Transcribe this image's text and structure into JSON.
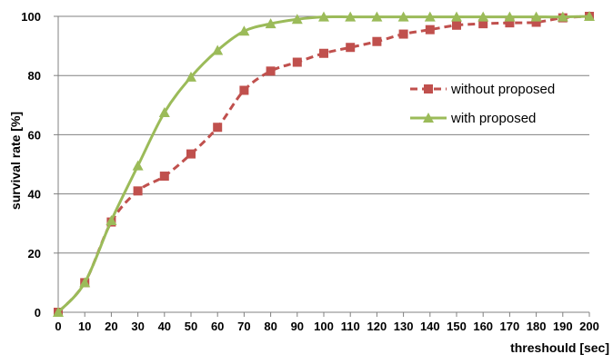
{
  "chart_data": {
    "type": "line",
    "title": "",
    "xlabel": "threshould [sec]",
    "ylabel": "survival rate [%]",
    "xlim": [
      0,
      200
    ],
    "ylim": [
      0,
      100
    ],
    "x_ticks": [
      0,
      10,
      20,
      30,
      40,
      50,
      60,
      70,
      80,
      90,
      100,
      110,
      120,
      130,
      140,
      150,
      160,
      170,
      180,
      190,
      200
    ],
    "y_ticks": [
      0,
      20,
      40,
      60,
      80,
      100
    ],
    "grid": "horizontal",
    "legend_position": "right",
    "x": [
      0,
      10,
      20,
      30,
      40,
      50,
      60,
      70,
      80,
      90,
      100,
      110,
      120,
      130,
      140,
      150,
      160,
      170,
      180,
      190,
      200
    ],
    "series": [
      {
        "name": "without proposed",
        "color": "#c0504d",
        "line_style": "dashed",
        "marker": "square",
        "values": [
          0,
          10,
          30.5,
          41,
          46,
          53.5,
          62.5,
          75,
          81.5,
          84.5,
          87.5,
          89.5,
          91.5,
          94,
          95.5,
          97,
          97.5,
          97.8,
          98,
          99.5,
          100
        ]
      },
      {
        "name": "with proposed",
        "color": "#9bbb59",
        "line_style": "solid",
        "marker": "triangle",
        "values": [
          0,
          10,
          31,
          49.5,
          67.5,
          79.5,
          88.5,
          95,
          97.5,
          99,
          99.8,
          99.8,
          99.8,
          99.8,
          99.8,
          99.8,
          99.8,
          99.8,
          99.8,
          99.8,
          100
        ]
      }
    ]
  }
}
